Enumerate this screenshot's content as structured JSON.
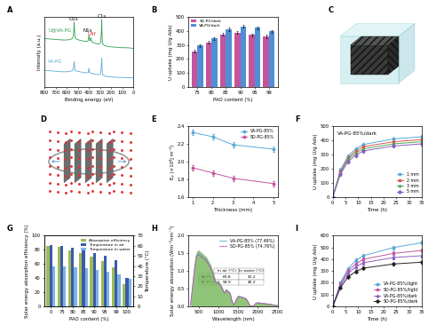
{
  "chart_data": [
    {
      "type": "line",
      "label": "A",
      "xlabel": "Binding energy (eV)",
      "ylabel": "Intensity (a.u.)",
      "xlim": [
        800,
        0
      ],
      "xticks": [
        800,
        700,
        600,
        500,
        400,
        300,
        200,
        100,
        0
      ],
      "ylim": [
        0,
        10
      ],
      "tick_labels": "x",
      "x": [
        800,
        760,
        720,
        680,
        640,
        600,
        570,
        550,
        540,
        535,
        532,
        529,
        525,
        510,
        480,
        450,
        420,
        405,
        400,
        396,
        390,
        385,
        382,
        379,
        370,
        340,
        310,
        295,
        288,
        285,
        282,
        278,
        260,
        220,
        180,
        140,
        100,
        60,
        20,
        0
      ],
      "series": [
        {
          "name": "U@VA-PG",
          "color": "#2e9e4f",
          "line_style": "solid",
          "marker": "none",
          "values": [
            6.9,
            6.85,
            6.8,
            6.75,
            6.7,
            6.7,
            6.75,
            6.9,
            7.3,
            8.2,
            9.2,
            8.0,
            7.0,
            6.8,
            6.65,
            6.55,
            6.5,
            6.6,
            7.4,
            6.9,
            6.6,
            6.7,
            7.0,
            6.6,
            6.4,
            6.2,
            6.1,
            6.3,
            7.8,
            9.6,
            7.6,
            6.2,
            5.9,
            5.75,
            5.7,
            5.65,
            5.6,
            5.6,
            5.55,
            5.5
          ]
        },
        {
          "name": "VA-PG",
          "color": "#5aa9d6",
          "line_style": "solid",
          "marker": "none",
          "values": [
            2.4,
            2.35,
            2.3,
            2.25,
            2.2,
            2.2,
            2.25,
            2.35,
            2.6,
            3.1,
            3.6,
            3.0,
            2.4,
            2.3,
            2.2,
            2.1,
            2.05,
            2.1,
            2.7,
            2.2,
            2.05,
            2.0,
            2.0,
            2.0,
            1.95,
            1.85,
            1.8,
            1.9,
            3.0,
            4.1,
            2.9,
            1.8,
            1.6,
            1.5,
            1.45,
            1.4,
            1.4,
            1.35,
            1.35,
            1.3
          ]
        }
      ],
      "annotations": [
        {
          "text": "O1s",
          "x": 540,
          "y": 9.3
        },
        {
          "text": "N1s",
          "x": 410,
          "y": 7.7
        },
        {
          "text": "U4f",
          "x": 372,
          "y": 7.2,
          "color": "#d62728"
        },
        {
          "text": "C1s",
          "x": 285,
          "y": 9.7
        }
      ]
    },
    {
      "type": "bar",
      "label": "B",
      "xlabel": "PAO content (%)",
      "ylabel": "U uptake (mg U/g Ads)",
      "categories": [
        "75",
        "80",
        "85",
        "90",
        "95",
        "99"
      ],
      "ylim": [
        0,
        500
      ],
      "yticks": [
        0,
        100,
        200,
        300,
        400,
        500
      ],
      "legend": "upper left",
      "series": [
        {
          "name": "SD-PG/dark",
          "color": "#c2559e",
          "values": [
            255,
            318,
            375,
            388,
            372,
            360
          ],
          "errors": [
            8,
            10,
            10,
            12,
            10,
            10
          ]
        },
        {
          "name": "VA-PG/dark",
          "color": "#4f8fd6",
          "values": [
            295,
            345,
            412,
            432,
            420,
            396
          ],
          "errors": [
            10,
            10,
            12,
            12,
            12,
            10
          ]
        }
      ]
    },
    {
      "type": "diagram",
      "label": "C"
    },
    {
      "type": "diagram",
      "label": "D"
    },
    {
      "type": "line",
      "label": "E",
      "xlabel": "Thickness (mm)",
      "ylabel": "Eₚ (×10⁴J m⁻²)",
      "xlim": [
        0.8,
        5.2
      ],
      "xticks": [
        1,
        2,
        3,
        4,
        5
      ],
      "ylim": [
        1.6,
        2.4
      ],
      "yticks": [
        1.6,
        1.8,
        2.0,
        2.2,
        2.4
      ],
      "legend": "upper right",
      "x": [
        1,
        2,
        3,
        5
      ],
      "series": [
        {
          "name": "VA-PG-85%",
          "color": "#5aa9d6",
          "marker": "circle",
          "line_style": "solid",
          "values": [
            2.33,
            2.28,
            2.19,
            2.14
          ],
          "errors": [
            0.03,
            0.03,
            0.03,
            0.03
          ]
        },
        {
          "name": "SD-PG-85%",
          "color": "#c2559e",
          "marker": "circle",
          "line_style": "solid",
          "values": [
            1.93,
            1.87,
            1.81,
            1.75
          ],
          "errors": [
            0.03,
            0.03,
            0.03,
            0.03
          ]
        }
      ]
    },
    {
      "type": "line",
      "label": "F",
      "xlabel": "Time (h)",
      "ylabel": "U uptake (mg U/g Ads)",
      "xlim": [
        0,
        35
      ],
      "xticks": [
        0,
        5,
        10,
        15,
        20,
        25,
        30,
        35
      ],
      "ylim": [
        0,
        500
      ],
      "yticks": [
        0,
        100,
        200,
        300,
        400,
        500
      ],
      "legend": "lower right",
      "annotations": [
        {
          "text": "VA-PG-85%/dark"
        }
      ],
      "x": [
        0,
        3,
        6,
        9,
        12,
        24,
        35
      ],
      "series": [
        {
          "name": "1 mm",
          "color": "#5aa9d6",
          "marker": "circle",
          "line_style": "solid",
          "values": [
            0,
            190,
            290,
            340,
            370,
            410,
            425
          ],
          "errors": [
            0,
            10,
            12,
            12,
            12,
            12,
            12
          ]
        },
        {
          "name": "2 mm",
          "color": "#d9534f",
          "marker": "square",
          "line_style": "solid",
          "values": [
            0,
            180,
            275,
            325,
            355,
            390,
            405
          ],
          "errors": [
            0,
            10,
            12,
            12,
            12,
            12,
            12
          ]
        },
        {
          "name": "3 mm",
          "color": "#4caf50",
          "marker": "triangle",
          "line_style": "solid",
          "values": [
            0,
            170,
            265,
            310,
            340,
            375,
            390
          ],
          "errors": [
            0,
            10,
            12,
            12,
            12,
            12,
            12
          ]
        },
        {
          "name": "5 mm",
          "color": "#8e5cc4",
          "marker": "diamond",
          "line_style": "solid",
          "values": [
            0,
            160,
            250,
            295,
            325,
            360,
            375
          ],
          "errors": [
            0,
            10,
            12,
            12,
            12,
            12,
            12
          ]
        }
      ]
    },
    {
      "type": "bar",
      "label": "G",
      "xlabel": "PAO content (%)",
      "ylabel": "Solar energy absorption efficiency (%)",
      "y2label": "Temperature (°C)",
      "categories": [
        "0",
        "75",
        "80",
        "85",
        "90",
        "95",
        "99",
        "100"
      ],
      "ylim": [
        0,
        100
      ],
      "yticks": [
        0,
        20,
        40,
        60,
        80,
        100
      ],
      "y2lim": [
        0,
        70
      ],
      "y2ticks": [
        0,
        10,
        20,
        30,
        40,
        50,
        60,
        70
      ],
      "legend": "upper right",
      "series": [
        {
          "name": "Absorption efficiency",
          "color": "#9bbb59",
          "values": [
            86,
            84,
            79,
            76,
            71,
            64,
            55,
            32
          ]
        },
        {
          "name": "Temperature in air",
          "color": "#3b5ba8",
          "axis": "y2",
          "values": [
            61,
            60,
            58,
            56,
            53,
            50,
            46,
            28
          ]
        },
        {
          "name": "Temperature in water",
          "color": "#7fb2e5",
          "axis": "y2",
          "values": [
            40,
            39.5,
            38.5,
            37.5,
            36,
            34.5,
            32,
            27
          ]
        }
      ]
    },
    {
      "type": "line",
      "label": "H",
      "xlabel": "Wavelength (nm)",
      "ylabel": "Solar energy absorption (Wm⁻²nm⁻¹)",
      "xlim": [
        250,
        2500
      ],
      "xticks": [
        500,
        1000,
        1500,
        2000,
        2500
      ],
      "ylim": [
        0.0,
        2.0
      ],
      "yticks": [
        0.0,
        0.5,
        1.0,
        1.5,
        2.0
      ],
      "legend": "upper right",
      "x": [
        300,
        350,
        400,
        450,
        500,
        550,
        600,
        650,
        700,
        750,
        800,
        850,
        900,
        950,
        1000,
        1050,
        1100,
        1150,
        1200,
        1250,
        1300,
        1350,
        1400,
        1450,
        1500,
        1550,
        1600,
        1650,
        1700,
        1750,
        1800,
        1850,
        1900,
        1950,
        2000,
        2100,
        2200,
        2300,
        2400,
        2500
      ],
      "series": [
        {
          "type": "area",
          "color": "#6ab04c",
          "values": [
            0.05,
            0.6,
            1.15,
            1.55,
            1.6,
            1.55,
            1.5,
            1.45,
            1.4,
            1.3,
            1.2,
            1.05,
            0.85,
            0.7,
            0.75,
            0.65,
            0.55,
            0.4,
            0.5,
            0.45,
            0.4,
            0.15,
            0.05,
            0.2,
            0.3,
            0.3,
            0.28,
            0.26,
            0.24,
            0.15,
            0.03,
            0.02,
            0.03,
            0.1,
            0.12,
            0.1,
            0.09,
            0.07,
            0.05,
            0.03
          ]
        },
        {
          "name": "VA-PG-85% (77.49%)",
          "color": "#5aa9d6",
          "marker": "none",
          "line_style": "solid",
          "values": [
            0.04,
            0.55,
            1.08,
            1.46,
            1.5,
            1.46,
            1.41,
            1.37,
            1.32,
            1.22,
            1.13,
            0.99,
            0.8,
            0.66,
            0.7,
            0.61,
            0.52,
            0.37,
            0.47,
            0.42,
            0.37,
            0.14,
            0.04,
            0.18,
            0.28,
            0.28,
            0.26,
            0.24,
            0.22,
            0.14,
            0.02,
            0.01,
            0.02,
            0.09,
            0.11,
            0.09,
            0.08,
            0.06,
            0.04,
            0.02
          ]
        },
        {
          "name": "SD-PG-85% (74.76%)",
          "color": "#c2559e",
          "marker": "none",
          "line_style": "solid",
          "values": [
            0.04,
            0.53,
            1.04,
            1.42,
            1.46,
            1.42,
            1.37,
            1.33,
            1.28,
            1.19,
            1.1,
            0.96,
            0.78,
            0.64,
            0.68,
            0.59,
            0.5,
            0.36,
            0.45,
            0.41,
            0.36,
            0.13,
            0.04,
            0.17,
            0.27,
            0.27,
            0.25,
            0.23,
            0.21,
            0.13,
            0.02,
            0.01,
            0.02,
            0.08,
            0.1,
            0.08,
            0.07,
            0.06,
            0.04,
            0.02
          ]
        }
      ],
      "table": {
        "columns": [
          "In air (°C)",
          "In water (°C)"
        ],
        "rows": [
          {
            "name": "VA-PG-85%",
            "values": [
              60.8,
              41.2
            ]
          },
          {
            "name": "SD-PG-85%",
            "values": [
              58.9,
              40.2
            ]
          }
        ]
      }
    },
    {
      "type": "line",
      "label": "I",
      "xlabel": "Time (h)",
      "ylabel": "U uptake (mg U/g Ads)",
      "xlim": [
        0,
        35
      ],
      "xticks": [
        0,
        5,
        10,
        15,
        20,
        25,
        30,
        35
      ],
      "ylim": [
        0,
        600
      ],
      "yticks": [
        0,
        100,
        200,
        300,
        400,
        500,
        600
      ],
      "legend": "lower right",
      "x": [
        0,
        3,
        6,
        9,
        12,
        24,
        35
      ],
      "series": [
        {
          "name": "VA-PG-85%/light",
          "color": "#5aa9d6",
          "marker": "circle",
          "line_style": "solid",
          "values": [
            0,
            200,
            320,
            390,
            430,
            500,
            540
          ],
          "errors": [
            0,
            10,
            12,
            14,
            14,
            15,
            15
          ]
        },
        {
          "name": "SD-PG-85%/light",
          "color": "#c2559e",
          "marker": "square",
          "line_style": "solid",
          "values": [
            0,
            190,
            300,
            360,
            400,
            450,
            475
          ],
          "errors": [
            0,
            10,
            12,
            12,
            12,
            14,
            14
          ]
        },
        {
          "name": "VA-PG-85%/dark",
          "color": "#8e5cc4",
          "marker": "triangle",
          "line_style": "solid",
          "values": [
            0,
            180,
            280,
            335,
            370,
            415,
            430
          ],
          "errors": [
            0,
            10,
            12,
            12,
            12,
            12,
            12
          ]
        },
        {
          "name": "SD-PG-85%/dark",
          "color": "#222222",
          "marker": "diamond",
          "line_style": "solid",
          "values": [
            0,
            160,
            250,
            295,
            325,
            360,
            375
          ],
          "errors": [
            0,
            10,
            12,
            12,
            12,
            12,
            12
          ]
        }
      ]
    }
  ]
}
